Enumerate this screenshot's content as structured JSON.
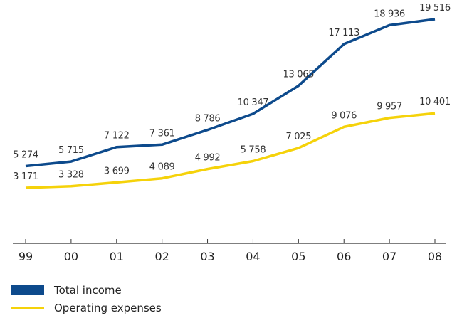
{
  "chart_data": {
    "type": "line",
    "categories": [
      "99",
      "00",
      "01",
      "02",
      "03",
      "04",
      "05",
      "06",
      "07",
      "08"
    ],
    "series": [
      {
        "name": "Total income",
        "color": "#0d4a8c",
        "values": [
          5274,
          5715,
          7122,
          7361,
          8786,
          10347,
          13065,
          17113,
          18936,
          19516
        ],
        "labels": [
          "5 274",
          "5 715",
          "7 122",
          "7 361",
          "8 786",
          "10 347",
          "13 065",
          "17 113",
          "18 936",
          "19 516"
        ]
      },
      {
        "name": "Operating expenses",
        "color": "#f5d20a",
        "values": [
          3171,
          3328,
          3699,
          4089,
          4992,
          5758,
          7025,
          9076,
          9957,
          10401
        ],
        "labels": [
          "3 171",
          "3 328",
          "3 699",
          "4 089",
          "4 992",
          "5 758",
          "7 025",
          "9 076",
          "9 957",
          "10 401"
        ]
      }
    ],
    "title": "",
    "xlabel": "",
    "ylabel": "",
    "ylim": [
      0,
      20000
    ],
    "grid": false,
    "legend_position": "bottom-left"
  }
}
